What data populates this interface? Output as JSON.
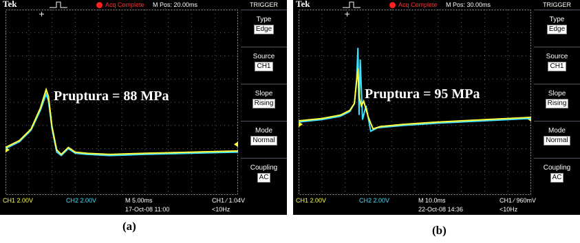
{
  "colors": {
    "ch1": "#ffff40",
    "ch2": "#40e0ff",
    "grid": "#6a6a6a",
    "acq": "#ff3030"
  },
  "scopes": [
    {
      "id": "a",
      "brand": "Tek",
      "acq_status": "Acq Complete",
      "m_pos": "M Pos: 20.00ms",
      "trigger_title": "TRIGGER",
      "menu": [
        {
          "label": "Type",
          "value": "Edge"
        },
        {
          "label": "Source",
          "value": "CH1"
        },
        {
          "label": "Slope",
          "value": "Rising"
        },
        {
          "label": "Mode",
          "value": "Normal"
        },
        {
          "label": "Coupling",
          "value": "AC"
        }
      ],
      "annotation": "Pruptura = 88 MPa",
      "ch1_scale": "CH1  2.00V",
      "ch2_scale": "CH2  2.00V",
      "timebase": "M 5.00ms",
      "trigger_readout": "CH1 ∕ 1.04V",
      "datetime": "17-Oct-08 11:00",
      "freq": "<10Hz",
      "caption": "(a)",
      "waveform": {
        "ch1": [
          [
            0,
            0.1
          ],
          [
            0.6,
            0.4
          ],
          [
            1.1,
            0.9
          ],
          [
            1.5,
            1.8
          ],
          [
            1.75,
            2.6
          ],
          [
            1.85,
            2.3
          ],
          [
            2.0,
            1.0
          ],
          [
            2.2,
            0.0
          ],
          [
            2.4,
            -0.2
          ],
          [
            2.7,
            0.1
          ],
          [
            3.0,
            -0.1
          ],
          [
            3.5,
            -0.15
          ],
          [
            4.5,
            -0.2
          ],
          [
            6,
            -0.15
          ],
          [
            8,
            -0.1
          ],
          [
            10,
            -0.05
          ]
        ],
        "ch2": [
          [
            0,
            0.05
          ],
          [
            0.6,
            0.35
          ],
          [
            1.1,
            0.85
          ],
          [
            1.5,
            1.7
          ],
          [
            1.75,
            2.4
          ],
          [
            1.85,
            2.1
          ],
          [
            2.0,
            0.9
          ],
          [
            2.2,
            -0.1
          ],
          [
            2.4,
            -0.25
          ],
          [
            2.7,
            0.05
          ],
          [
            3.0,
            -0.15
          ],
          [
            3.5,
            -0.2
          ],
          [
            4.5,
            -0.25
          ],
          [
            6,
            -0.2
          ],
          [
            8,
            -0.15
          ],
          [
            10,
            -0.1
          ]
        ]
      }
    },
    {
      "id": "b",
      "brand": "Tek",
      "acq_status": "Acq Complete",
      "m_pos": "M Pos: 30.00ms",
      "trigger_title": "TRIGGER",
      "menu": [
        {
          "label": "Type",
          "value": "Edge"
        },
        {
          "label": "Source",
          "value": "CH1"
        },
        {
          "label": "Slope",
          "value": "Rising"
        },
        {
          "label": "Mode",
          "value": "Normal"
        },
        {
          "label": "Coupling",
          "value": "AC"
        }
      ],
      "annotation": "Pruptura = 95 MPa",
      "ch1_scale": "CH1  2.00V",
      "ch2_scale": "CH2  2.00V",
      "timebase": "M 10.0ms",
      "trigger_readout": "CH1 ∕ 960mV",
      "datetime": "22-Oct-08 14:36",
      "freq": "<10Hz",
      "caption": "(b)",
      "waveform": {
        "ch1": [
          [
            0,
            0.15
          ],
          [
            1.0,
            0.25
          ],
          [
            1.8,
            0.4
          ],
          [
            2.2,
            0.6
          ],
          [
            2.4,
            0.9
          ],
          [
            2.55,
            2.4
          ],
          [
            2.6,
            1.2
          ],
          [
            2.7,
            0.8
          ],
          [
            2.8,
            1.0
          ],
          [
            3.0,
            0.3
          ],
          [
            3.2,
            -0.2
          ],
          [
            3.5,
            -0.1
          ],
          [
            4.5,
            0.0
          ],
          [
            6,
            0.1
          ],
          [
            8,
            0.2
          ],
          [
            10,
            0.3
          ]
        ],
        "ch2": [
          [
            0,
            0.1
          ],
          [
            1.0,
            0.2
          ],
          [
            1.8,
            0.35
          ],
          [
            2.2,
            0.55
          ],
          [
            2.4,
            0.9
          ],
          [
            2.5,
            2.0
          ],
          [
            2.55,
            3.3
          ],
          [
            2.6,
            0.4
          ],
          [
            2.65,
            2.8
          ],
          [
            2.75,
            0.2
          ],
          [
            2.9,
            0.8
          ],
          [
            3.1,
            -0.3
          ],
          [
            3.4,
            -0.15
          ],
          [
            4.5,
            -0.05
          ],
          [
            6,
            0.05
          ],
          [
            8,
            0.15
          ],
          [
            10,
            0.25
          ]
        ]
      }
    }
  ]
}
